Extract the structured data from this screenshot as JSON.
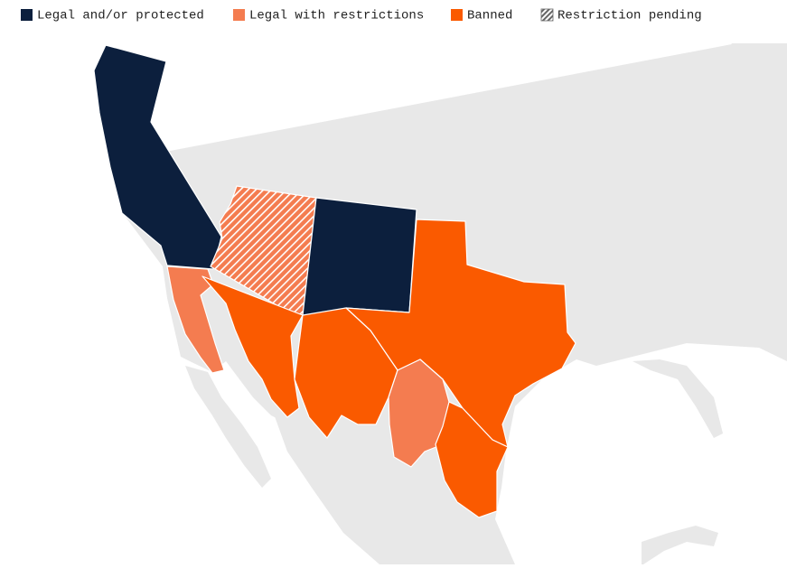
{
  "legend": {
    "items": [
      {
        "label": "Legal and/or protected"
      },
      {
        "label": "Legal with restrictions"
      },
      {
        "label": "Banned"
      },
      {
        "label": "Restriction pending"
      }
    ]
  }
}
